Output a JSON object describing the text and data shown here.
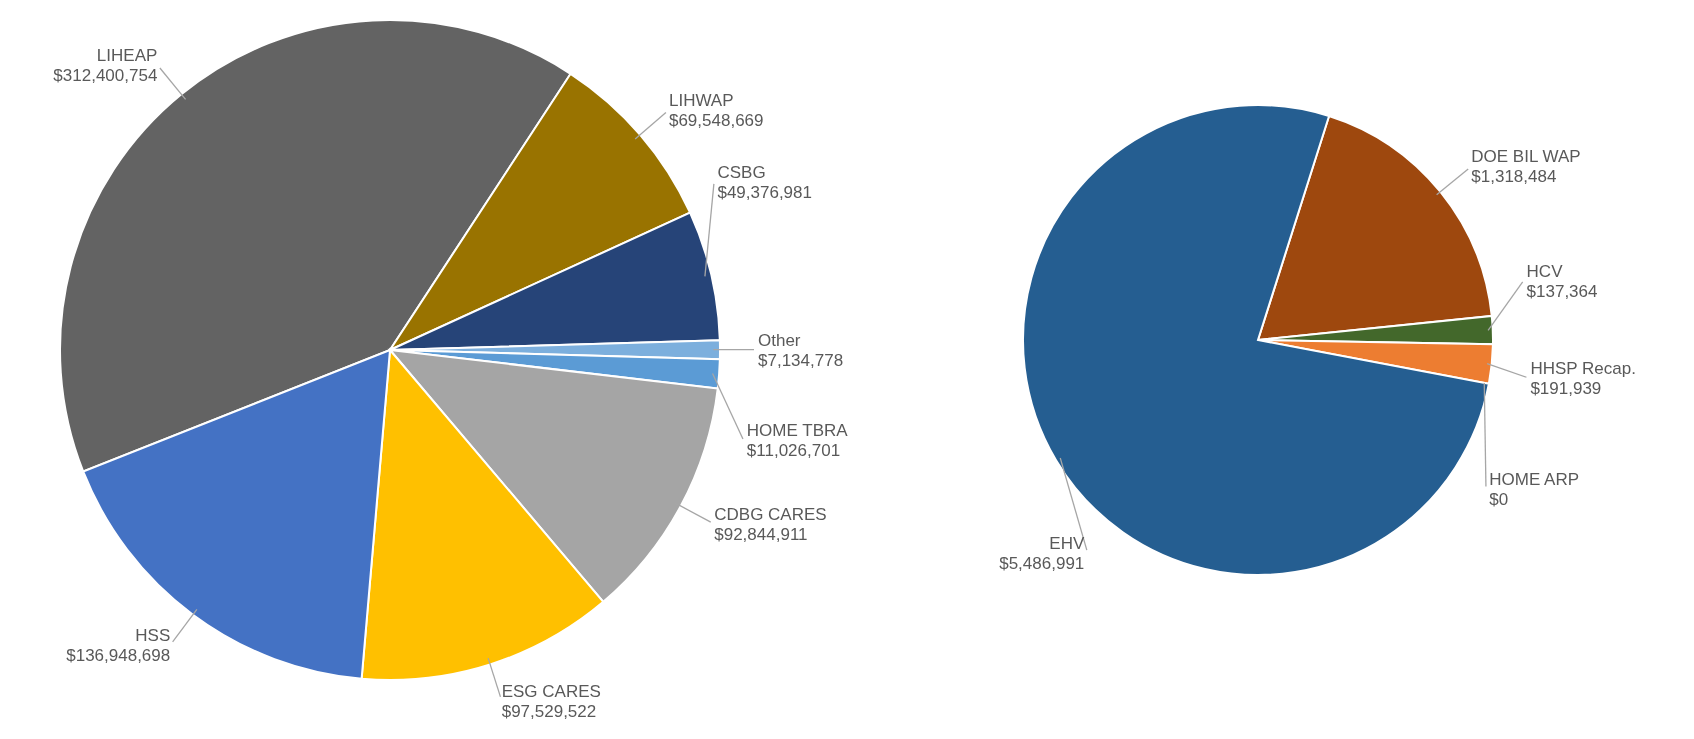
{
  "chart_data": [
    {
      "type": "pie",
      "categories": [
        "LIHEAP",
        "LIHWAP",
        "CSBG",
        "Other",
        "HOME TBRA",
        "CDBG CARES",
        "ESG CARES",
        "HSS"
      ],
      "values": [
        312400754,
        69548669,
        49376981,
        7134778,
        11026701,
        92844911,
        97529522,
        136948698
      ],
      "value_labels": [
        "$312,400,754",
        "$69,548,669",
        "$49,376,981",
        "$7,134,778",
        "$11,026,701",
        "$92,844,911",
        "$97,529,522",
        "$136,948,698"
      ],
      "colors": [
        "#636363",
        "#997300",
        "#264478",
        "#7cafdd",
        "#5b9bd5",
        "#a5a5a5",
        "#ffc000",
        "#4472c4"
      ]
    },
    {
      "type": "pie",
      "categories": [
        "DOE BIL WAP",
        "HCV",
        "HHSP Recap.",
        "HOME ARP",
        "EHV"
      ],
      "values": [
        1318484,
        137364,
        191939,
        0,
        5486991
      ],
      "value_labels": [
        "$1,318,484",
        "$137,364",
        "$191,939",
        "$0",
        "$5,486,991"
      ],
      "colors": [
        "#9e480e",
        "#43682b",
        "#ed7d31",
        "#a5a5a5",
        "#255e91"
      ]
    }
  ]
}
